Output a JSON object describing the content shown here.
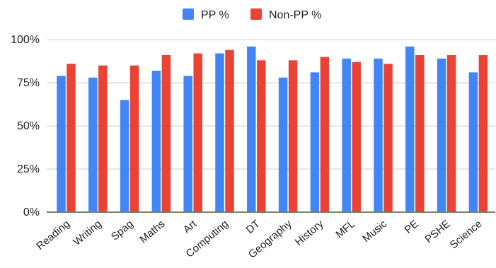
{
  "chart_data": {
    "type": "bar",
    "title": "",
    "xlabel": "",
    "ylabel": "",
    "ylim": [
      0,
      100
    ],
    "yticks": [
      "0%",
      "25%",
      "50%",
      "75%",
      "100%"
    ],
    "legend_position": "top-center",
    "grid": true,
    "categories": [
      "Reading",
      "Writing",
      "Spag",
      "Maths",
      "Art",
      "Computing",
      "DT",
      "Geography",
      "History",
      "MFL",
      "Music",
      "PE",
      "PSHE",
      "Science"
    ],
    "series": [
      {
        "name": "PP %",
        "color": "#4285f4",
        "values": [
          79,
          78,
          65,
          82,
          79,
          92,
          96,
          78,
          81,
          89,
          89,
          96,
          89,
          81
        ]
      },
      {
        "name": "Non-PP %",
        "color": "#ea4335",
        "values": [
          86,
          85,
          85,
          91,
          92,
          94,
          88,
          88,
          90,
          87,
          86,
          91,
          91,
          91
        ]
      }
    ]
  }
}
